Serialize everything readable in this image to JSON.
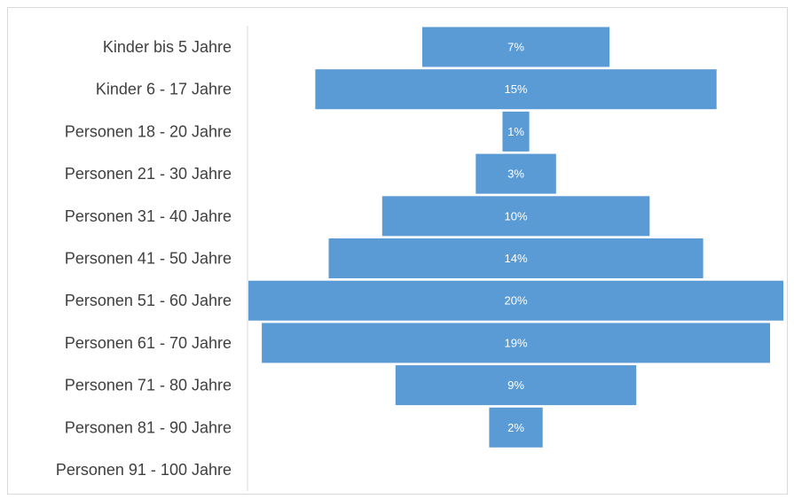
{
  "chart_data": {
    "type": "bar",
    "orientation": "horizontal",
    "layout": "centered",
    "categories": [
      "Kinder bis 5 Jahre",
      "Kinder 6 - 17 Jahre",
      "Personen 18 - 20 Jahre",
      "Personen 21 - 30 Jahre",
      "Personen 31 - 40 Jahre",
      "Personen 41 - 50 Jahre",
      "Personen 51 - 60 Jahre",
      "Personen 61 - 70 Jahre",
      "Personen 71 - 80 Jahre",
      "Personen 81 - 90 Jahre",
      "Personen 91 - 100 Jahre"
    ],
    "values": [
      7,
      15,
      1,
      3,
      10,
      14,
      20,
      19,
      9,
      2,
      0
    ],
    "value_labels": [
      "7%",
      "15%",
      "1%",
      "3%",
      "10%",
      "14%",
      "20%",
      "19%",
      "9%",
      "2%",
      ""
    ],
    "unit": "%",
    "xlim": [
      0,
      20
    ],
    "grid": false,
    "legend": "none",
    "colors": {
      "bar": "#5b9bd5",
      "bar_label": "#ffffff",
      "category_label": "#404040",
      "axis_line": "#d9d9d9",
      "border": "#d9d9d9"
    }
  }
}
